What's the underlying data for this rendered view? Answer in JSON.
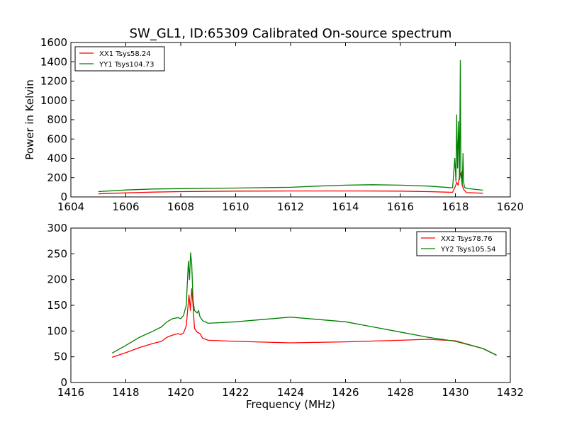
{
  "title": "SW_GL1, ID:65309 Calibrated On-source spectrum",
  "chart_data": [
    {
      "type": "line",
      "title": "SW_GL1, ID:65309 Calibrated On-source spectrum",
      "xlabel": "",
      "ylabel": "Power in Kelvin",
      "xlim": [
        1604,
        1620
      ],
      "ylim": [
        0,
        1600
      ],
      "xticks": [
        1604,
        1606,
        1608,
        1610,
        1612,
        1614,
        1616,
        1618,
        1620
      ],
      "yticks": [
        0,
        200,
        400,
        600,
        800,
        1000,
        1200,
        1400,
        1600
      ],
      "grid": false,
      "legend_position": "top-left",
      "series": [
        {
          "name": "XX1 Tsys58.24",
          "color": "#ff0000",
          "x": [
            1605.0,
            1606.0,
            1607.0,
            1608.0,
            1610.0,
            1612.0,
            1614.0,
            1616.0,
            1617.0,
            1617.9,
            1618.0,
            1618.05,
            1618.1,
            1618.15,
            1618.2,
            1618.25,
            1618.3,
            1618.4,
            1619.0
          ],
          "y": [
            32,
            42,
            50,
            55,
            60,
            62,
            62,
            60,
            55,
            48,
            110,
            150,
            120,
            210,
            260,
            120,
            80,
            45,
            38
          ]
        },
        {
          "name": "YY1 Tsys104.73",
          "color": "#008000",
          "x": [
            1605.0,
            1606.0,
            1607.0,
            1608.0,
            1610.0,
            1612.0,
            1613.0,
            1614.0,
            1615.0,
            1616.0,
            1617.0,
            1617.9,
            1617.98,
            1618.02,
            1618.05,
            1618.08,
            1618.12,
            1618.15,
            1618.18,
            1618.2,
            1618.22,
            1618.25,
            1618.28,
            1618.3,
            1618.33,
            1618.4,
            1618.5,
            1619.0
          ],
          "y": [
            55,
            72,
            82,
            86,
            92,
            100,
            112,
            122,
            126,
            122,
            112,
            95,
            400,
            160,
            850,
            300,
            780,
            180,
            1415,
            200,
            260,
            120,
            450,
            160,
            100,
            90,
            85,
            70
          ]
        }
      ]
    },
    {
      "type": "line",
      "title": "",
      "xlabel": "Frequency (MHz)",
      "ylabel": "",
      "xlim": [
        1416,
        1432
      ],
      "ylim": [
        0,
        300
      ],
      "xticks": [
        1416,
        1418,
        1420,
        1422,
        1424,
        1426,
        1428,
        1430,
        1432
      ],
      "yticks": [
        0,
        50,
        100,
        150,
        200,
        250,
        300
      ],
      "grid": false,
      "legend_position": "top-right",
      "series": [
        {
          "name": "XX2 Tsys78.76",
          "color": "#ff0000",
          "x": [
            1417.5,
            1418.0,
            1418.5,
            1419.0,
            1419.3,
            1419.5,
            1419.7,
            1419.9,
            1420.0,
            1420.1,
            1420.2,
            1420.3,
            1420.35,
            1420.4,
            1420.45,
            1420.5,
            1420.6,
            1420.7,
            1420.8,
            1421.0,
            1422.0,
            1424.0,
            1426.0,
            1428.0,
            1429.0,
            1430.0,
            1431.0,
            1431.5
          ],
          "y": [
            49,
            58,
            68,
            76,
            80,
            88,
            92,
            95,
            93,
            96,
            110,
            170,
            140,
            182,
            150,
            105,
            98,
            95,
            86,
            82,
            80,
            77,
            79,
            82,
            84,
            81,
            66,
            53
          ]
        },
        {
          "name": "YY2 Tsys105.54",
          "color": "#008000",
          "x": [
            1417.5,
            1418.0,
            1418.5,
            1419.0,
            1419.3,
            1419.5,
            1419.7,
            1419.9,
            1420.0,
            1420.1,
            1420.2,
            1420.28,
            1420.32,
            1420.36,
            1420.4,
            1420.45,
            1420.5,
            1420.6,
            1420.65,
            1420.7,
            1420.8,
            1421.0,
            1422.0,
            1424.0,
            1426.0,
            1428.0,
            1429.0,
            1430.0,
            1431.0,
            1431.5
          ],
          "y": [
            57,
            72,
            88,
            100,
            108,
            118,
            124,
            126,
            124,
            130,
            150,
            236,
            200,
            252,
            230,
            160,
            140,
            135,
            140,
            128,
            120,
            115,
            118,
            127,
            118,
            98,
            88,
            80,
            66,
            53
          ]
        }
      ]
    }
  ]
}
